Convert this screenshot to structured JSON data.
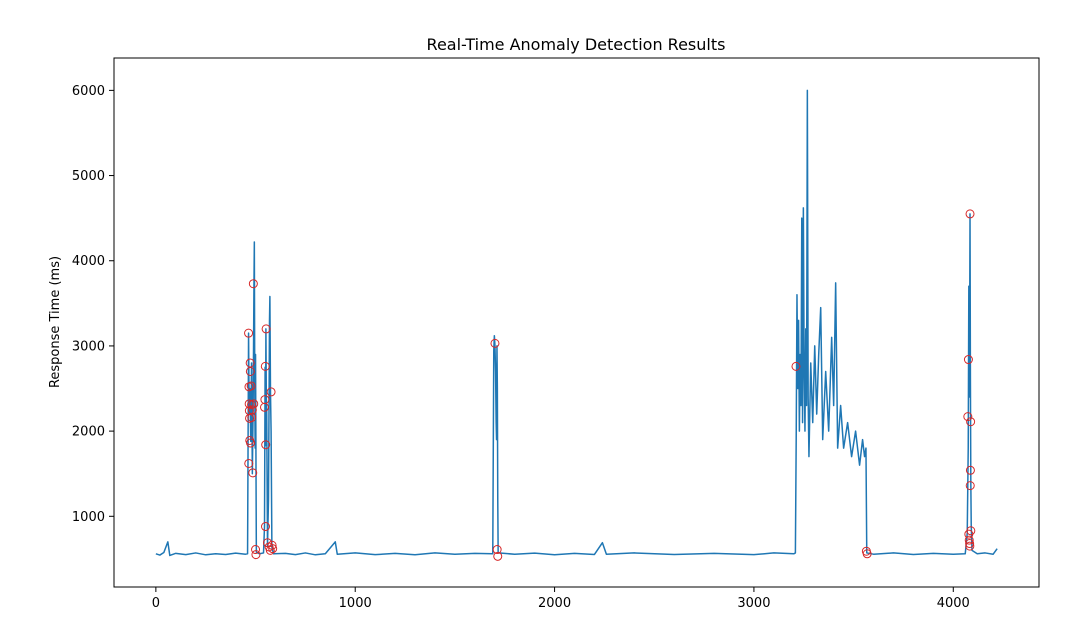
{
  "chart_data": {
    "type": "line",
    "title": "Real-Time Anomaly Detection Results",
    "xlabel": "",
    "ylabel": "Response Time (ms)",
    "xlim": [
      -210,
      4430
    ],
    "ylim": [
      170,
      6380
    ],
    "x_ticks": [
      0,
      1000,
      2000,
      3000,
      4000
    ],
    "x_tick_labels": [
      "0",
      "1000",
      "2000",
      "3000",
      "4000"
    ],
    "y_ticks": [
      1000,
      2000,
      3000,
      4000,
      5000,
      6000
    ],
    "y_tick_labels": [
      "1000",
      "2000",
      "3000",
      "4000",
      "5000",
      "6000"
    ],
    "grid": false,
    "legend": "none",
    "series": [
      {
        "kind": "line",
        "color": "#1f77b4",
        "points": [
          [
            0,
            560
          ],
          [
            20,
            545
          ],
          [
            40,
            575
          ],
          [
            60,
            700
          ],
          [
            70,
            540
          ],
          [
            100,
            565
          ],
          [
            150,
            550
          ],
          [
            200,
            570
          ],
          [
            250,
            548
          ],
          [
            300,
            560
          ],
          [
            350,
            552
          ],
          [
            400,
            568
          ],
          [
            450,
            555
          ],
          [
            460,
            560
          ],
          [
            462,
            1600
          ],
          [
            465,
            3150
          ],
          [
            468,
            2200
          ],
          [
            472,
            2500
          ],
          [
            476,
            1880
          ],
          [
            480,
            2800
          ],
          [
            484,
            1500
          ],
          [
            488,
            2300
          ],
          [
            492,
            3700
          ],
          [
            494,
            4220
          ],
          [
            496,
            2600
          ],
          [
            498,
            1800
          ],
          [
            500,
            2900
          ],
          [
            504,
            580
          ],
          [
            520,
            560
          ],
          [
            540,
            570
          ],
          [
            545,
            880
          ],
          [
            548,
            2750
          ],
          [
            550,
            1830
          ],
          [
            552,
            3200
          ],
          [
            554,
            2400
          ],
          [
            556,
            2250
          ],
          [
            560,
            650
          ],
          [
            565,
            1200
          ],
          [
            570,
            3300
          ],
          [
            572,
            3580
          ],
          [
            575,
            2450
          ],
          [
            578,
            2000
          ],
          [
            582,
            640
          ],
          [
            590,
            560
          ],
          [
            650,
            565
          ],
          [
            700,
            550
          ],
          [
            750,
            570
          ],
          [
            800,
            548
          ],
          [
            850,
            560
          ],
          [
            900,
            700
          ],
          [
            910,
            555
          ],
          [
            1000,
            570
          ],
          [
            1100,
            550
          ],
          [
            1200,
            565
          ],
          [
            1300,
            548
          ],
          [
            1400,
            570
          ],
          [
            1500,
            555
          ],
          [
            1600,
            565
          ],
          [
            1690,
            560
          ],
          [
            1695,
            2950
          ],
          [
            1698,
            3120
          ],
          [
            1701,
            3000
          ],
          [
            1704,
            2700
          ],
          [
            1707,
            2100
          ],
          [
            1709,
            1900
          ],
          [
            1711,
            3000
          ],
          [
            1713,
            2500
          ],
          [
            1715,
            1200
          ],
          [
            1717,
            570
          ],
          [
            1800,
            555
          ],
          [
            1900,
            568
          ],
          [
            2000,
            548
          ],
          [
            2100,
            565
          ],
          [
            2200,
            552
          ],
          [
            2240,
            690
          ],
          [
            2260,
            555
          ],
          [
            2400,
            570
          ],
          [
            2600,
            552
          ],
          [
            2800,
            565
          ],
          [
            3000,
            550
          ],
          [
            3100,
            570
          ],
          [
            3200,
            560
          ],
          [
            3208,
            570
          ],
          [
            3212,
            1900
          ],
          [
            3216,
            3600
          ],
          [
            3220,
            2500
          ],
          [
            3224,
            3300
          ],
          [
            3228,
            2000
          ],
          [
            3232,
            2900
          ],
          [
            3236,
            2300
          ],
          [
            3240,
            4500
          ],
          [
            3244,
            2100
          ],
          [
            3248,
            4620
          ],
          [
            3252,
            2700
          ],
          [
            3256,
            2000
          ],
          [
            3260,
            3200
          ],
          [
            3264,
            2300
          ],
          [
            3268,
            6000
          ],
          [
            3272,
            2400
          ],
          [
            3276,
            1700
          ],
          [
            3285,
            2800
          ],
          [
            3295,
            2100
          ],
          [
            3305,
            3000
          ],
          [
            3315,
            2200
          ],
          [
            3325,
            2900
          ],
          [
            3335,
            3450
          ],
          [
            3345,
            1900
          ],
          [
            3360,
            2700
          ],
          [
            3375,
            2000
          ],
          [
            3390,
            3100
          ],
          [
            3400,
            2300
          ],
          [
            3410,
            3740
          ],
          [
            3420,
            1800
          ],
          [
            3435,
            2300
          ],
          [
            3450,
            1800
          ],
          [
            3470,
            2100
          ],
          [
            3490,
            1700
          ],
          [
            3510,
            2000
          ],
          [
            3530,
            1600
          ],
          [
            3545,
            1900
          ],
          [
            3555,
            1700
          ],
          [
            3562,
            1800
          ],
          [
            3566,
            570
          ],
          [
            3600,
            555
          ],
          [
            3700,
            570
          ],
          [
            3800,
            552
          ],
          [
            3900,
            565
          ],
          [
            4000,
            555
          ],
          [
            4060,
            560
          ],
          [
            4070,
            800
          ],
          [
            4075,
            1800
          ],
          [
            4078,
            3700
          ],
          [
            4081,
            2400
          ],
          [
            4084,
            4550
          ],
          [
            4086,
            2600
          ],
          [
            4088,
            1400
          ],
          [
            4090,
            900
          ],
          [
            4094,
            600
          ],
          [
            4120,
            560
          ],
          [
            4160,
            570
          ],
          [
            4200,
            555
          ],
          [
            4220,
            620
          ]
        ]
      },
      {
        "kind": "anomalies",
        "color": "#d62728",
        "points": [
          [
            465,
            3150
          ],
          [
            466,
            1620
          ],
          [
            467,
            2520
          ],
          [
            468,
            2320
          ],
          [
            469,
            2240
          ],
          [
            470,
            2150
          ],
          [
            471,
            1890
          ],
          [
            473,
            2800
          ],
          [
            474,
            2700
          ],
          [
            475,
            1860
          ],
          [
            478,
            2530
          ],
          [
            480,
            2310
          ],
          [
            481,
            2160
          ],
          [
            484,
            2250
          ],
          [
            486,
            1510
          ],
          [
            489,
            3730
          ],
          [
            491,
            2320
          ],
          [
            500,
            610
          ],
          [
            502,
            550
          ],
          [
            545,
            2280
          ],
          [
            547,
            2370
          ],
          [
            549,
            2760
          ],
          [
            551,
            1840
          ],
          [
            553,
            3200
          ],
          [
            550,
            880
          ],
          [
            560,
            690
          ],
          [
            568,
            640
          ],
          [
            574,
            600
          ],
          [
            578,
            2460
          ],
          [
            583,
            660
          ],
          [
            586,
            620
          ],
          [
            1701,
            3030
          ],
          [
            1712,
            610
          ],
          [
            1715,
            530
          ],
          [
            3211,
            2760
          ],
          [
            3564,
            590
          ],
          [
            3568,
            560
          ],
          [
            4073,
            2170
          ],
          [
            4076,
            2840
          ],
          [
            4078,
            790
          ],
          [
            4080,
            720
          ],
          [
            4082,
            680
          ],
          [
            4083,
            650
          ],
          [
            4084,
            4550
          ],
          [
            4085,
            1360
          ],
          [
            4086,
            1540
          ],
          [
            4087,
            2110
          ],
          [
            4088,
            830
          ]
        ]
      }
    ]
  }
}
